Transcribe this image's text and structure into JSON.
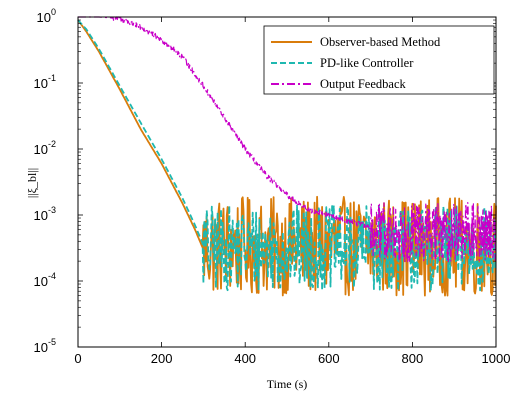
{
  "chart_data": {
    "type": "line",
    "xlabel": "Time (s)",
    "ylabel": "||ξ_bl||",
    "yscale": "log",
    "xlim": [
      0,
      1000
    ],
    "ylim": [
      1e-05,
      1
    ],
    "grid": false,
    "legend_position": "top-right",
    "x_ticks": [
      "0",
      "200",
      "400",
      "600",
      "800",
      "1000"
    ],
    "y_ticks": [
      {
        "base": "10",
        "exp": "0"
      },
      {
        "base": "10",
        "exp": "-1"
      },
      {
        "base": "10",
        "exp": "-2"
      },
      {
        "base": "10",
        "exp": "-3"
      },
      {
        "base": "10",
        "exp": "-4"
      },
      {
        "base": "10",
        "exp": "-5"
      }
    ],
    "series": [
      {
        "name": "Observer-based Method",
        "color": "#d97c0b",
        "style": "solid",
        "x": [
          0,
          20,
          50,
          100,
          150,
          200,
          250,
          280,
          300,
          330,
          360,
          400,
          450,
          500,
          550,
          600,
          650,
          700,
          750,
          800,
          850,
          900,
          950,
          1000
        ],
        "y": [
          0.9,
          0.6,
          0.3,
          0.08,
          0.02,
          0.006,
          0.0015,
          0.0006,
          0.0003,
          0.00025,
          0.0002,
          0.0002,
          0.0002,
          0.0002,
          0.0002,
          0.0002,
          0.0002,
          0.0002,
          0.0002,
          0.0002,
          0.0002,
          0.0002,
          0.0002,
          0.0002
        ],
        "noise_floor": {
          "start": 300,
          "level": 0.0002,
          "spread_decades": 1.5
        }
      },
      {
        "name": "PD-like Controller",
        "color": "#1fb8b0",
        "style": "dashed",
        "x": [
          0,
          20,
          50,
          100,
          150,
          200,
          250,
          280,
          300,
          330,
          360,
          400,
          450,
          500,
          550,
          600,
          650,
          700,
          750,
          800,
          850,
          900,
          950,
          1000
        ],
        "y": [
          0.9,
          0.65,
          0.33,
          0.09,
          0.025,
          0.007,
          0.0018,
          0.0007,
          0.00035,
          0.00025,
          0.0002,
          0.0002,
          0.0002,
          0.0002,
          0.0002,
          0.0002,
          0.0002,
          0.0002,
          0.0002,
          0.0002,
          0.0002,
          0.0002,
          0.0002,
          0.0002
        ],
        "noise_floor": {
          "start": 300,
          "level": 0.0002,
          "spread_decades": 1.3
        }
      },
      {
        "name": "Output Feedback",
        "color": "#c800c8",
        "style": "dashdot",
        "x": [
          0,
          50,
          100,
          150,
          200,
          250,
          300,
          350,
          400,
          450,
          500,
          550,
          600,
          650,
          700,
          720,
          750,
          800,
          850,
          900,
          950,
          1000
        ],
        "y": [
          1.0,
          1.0,
          0.95,
          0.7,
          0.45,
          0.25,
          0.09,
          0.03,
          0.01,
          0.004,
          0.002,
          0.0012,
          0.001,
          0.0008,
          0.00065,
          0.0006,
          0.0005,
          0.0004,
          0.0004,
          0.0004,
          0.0004,
          0.0004
        ],
        "noise_floor": {
          "start": 700,
          "level": 0.0004,
          "spread_decades": 0.9
        }
      }
    ]
  }
}
